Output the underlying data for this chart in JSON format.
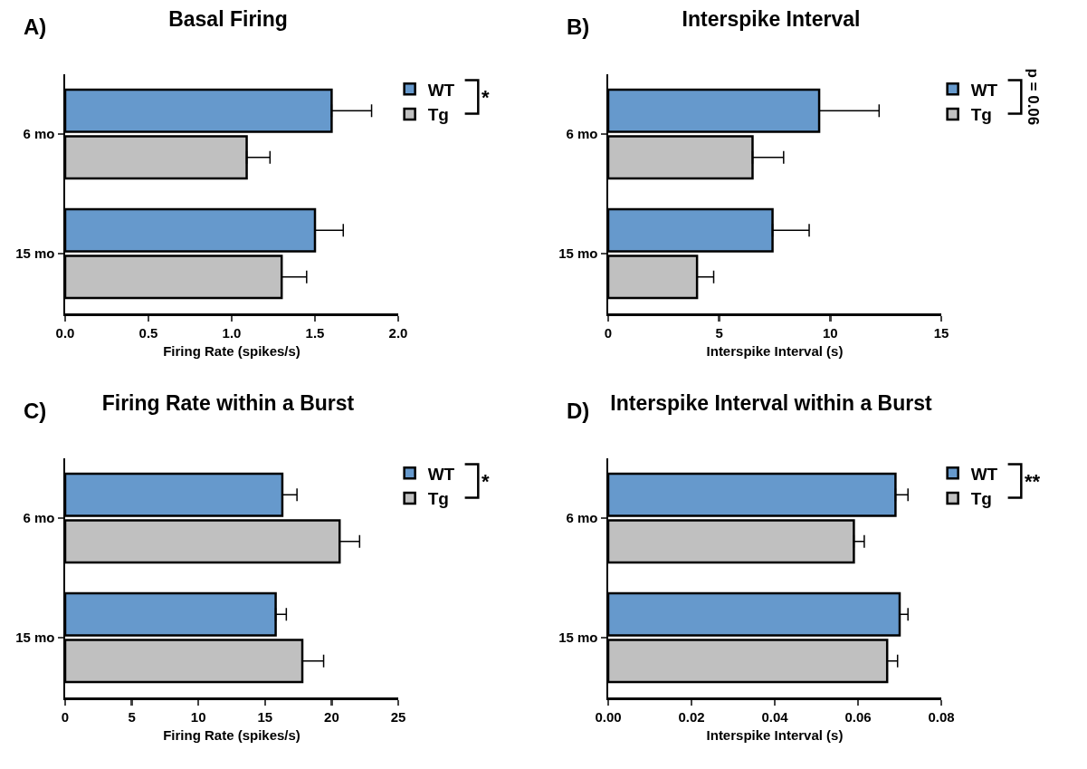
{
  "chart_data": [
    {
      "type": "bar",
      "orientation": "horizontal",
      "title": "Basal Firing",
      "xlabel": "Firing Rate (spikes/s)",
      "categories": [
        "6 mo",
        "15 mo"
      ],
      "xlim": [
        0,
        2
      ],
      "xticks": [
        {
          "value": 0,
          "label": "0.0"
        },
        {
          "value": 0.5,
          "label": "0.5"
        },
        {
          "value": 1,
          "label": "1.0"
        },
        {
          "value": 1.5,
          "label": "1.5"
        },
        {
          "value": 2,
          "label": "2.0"
        }
      ],
      "legend": "top right",
      "grid": false,
      "annotations": [
        "A)",
        "*"
      ],
      "series": [
        {
          "name": "WT",
          "color": "#6699cc",
          "values": [
            1.6,
            1.5
          ],
          "errors": [
            [
              1.6,
              1.84
            ],
            [
              1.5,
              1.67
            ]
          ]
        },
        {
          "name": "Tg",
          "color": "#c0c0c0",
          "values": [
            1.09,
            1.3
          ],
          "errors": [
            [
              1.09,
              1.23
            ],
            [
              1.3,
              1.45
            ]
          ]
        }
      ]
    },
    {
      "type": "bar",
      "orientation": "horizontal",
      "title": "Interspike Interval",
      "xlabel": "Interspike Interval (s)",
      "categories": [
        "6 mo",
        "15 mo"
      ],
      "xlim": [
        0,
        15
      ],
      "xticks": [
        0,
        5,
        10,
        15
      ],
      "legend": "top right",
      "grid": false,
      "annotations": [
        "B)",
        "p = 0.06"
      ],
      "series": [
        {
          "name": "WT",
          "color": "#6699cc",
          "values": [
            9.5,
            7.4
          ],
          "errors": [
            [
              9.5,
              12.2
            ],
            [
              7.4,
              9.05
            ]
          ]
        },
        {
          "name": "Tg",
          "color": "#c0c0c0",
          "values": [
            6.5,
            4.0
          ],
          "errors": [
            [
              6.5,
              7.9
            ],
            [
              4.0,
              4.75
            ]
          ]
        }
      ]
    },
    {
      "type": "bar",
      "orientation": "horizontal",
      "title": "Firing Rate within a Burst",
      "xlabel": "Firing Rate (spikes/s)",
      "categories": [
        "6 mo",
        "15 mo"
      ],
      "xlim": [
        0,
        25
      ],
      "xticks": [
        0,
        5,
        10,
        15,
        20,
        25
      ],
      "legend": "top right",
      "grid": false,
      "annotations": [
        "C)",
        "*"
      ],
      "series": [
        {
          "name": "WT",
          "color": "#6699cc",
          "values": [
            16.3,
            15.8
          ],
          "errors": [
            [
              16.3,
              17.4
            ],
            [
              15.8,
              16.6
            ]
          ]
        },
        {
          "name": "Tg",
          "color": "#c0c0c0",
          "values": [
            20.6,
            17.8
          ],
          "errors": [
            [
              20.6,
              22.1
            ],
            [
              17.8,
              19.4
            ]
          ]
        }
      ]
    },
    {
      "type": "bar",
      "orientation": "horizontal",
      "title": "Interspike Interval within a Burst",
      "xlabel": "Interspike Interval (s)",
      "categories": [
        "6 mo",
        "15 mo"
      ],
      "xlim": [
        0,
        0.08
      ],
      "xticks": [
        {
          "value": 0,
          "label": "0.00"
        },
        {
          "value": 0.02,
          "label": "0.02"
        },
        {
          "value": 0.04,
          "label": "0.04"
        },
        {
          "value": 0.06,
          "label": "0.06"
        },
        {
          "value": 0.08,
          "label": "0.08"
        }
      ],
      "legend": "top right",
      "grid": false,
      "annotations": [
        "D)",
        "**"
      ],
      "series": [
        {
          "name": "WT",
          "color": "#6699cc",
          "values": [
            0.069,
            0.07
          ],
          "errors": [
            [
              0.069,
              0.072
            ],
            [
              0.07,
              0.072
            ]
          ]
        },
        {
          "name": "Tg",
          "color": "#c0c0c0",
          "values": [
            0.059,
            0.067
          ],
          "errors": [
            [
              0.059,
              0.0615
            ],
            [
              0.067,
              0.0695
            ]
          ]
        }
      ]
    }
  ]
}
